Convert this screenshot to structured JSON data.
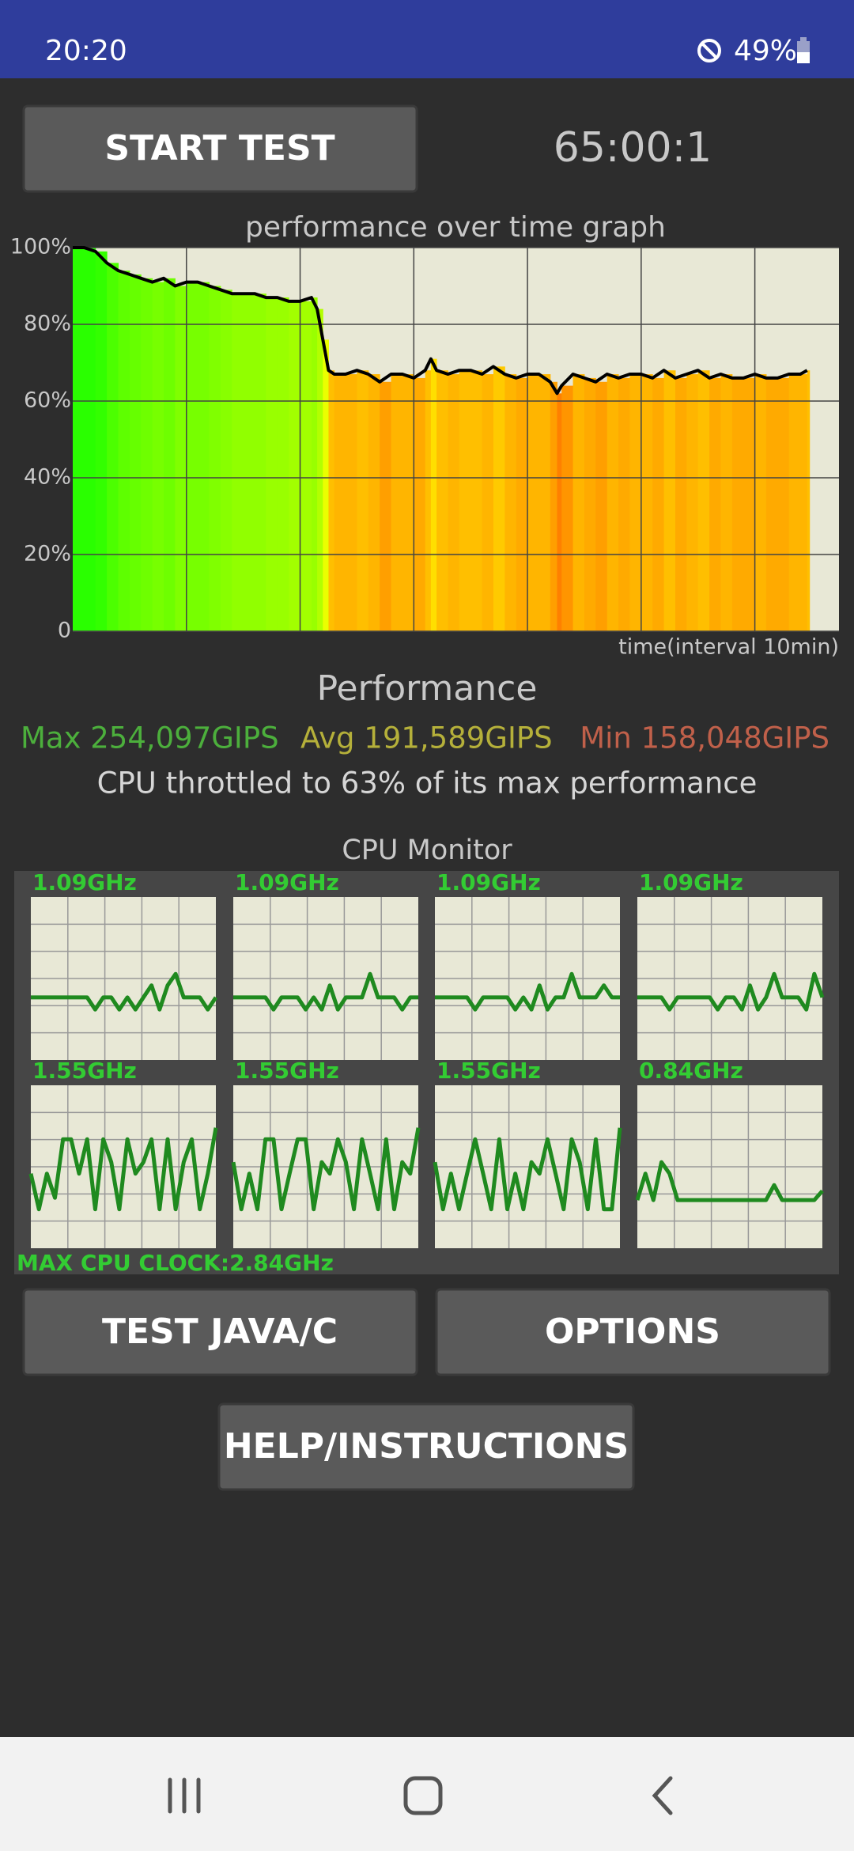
{
  "status_bar": {
    "time": "20:20",
    "battery": "49%"
  },
  "controls": {
    "start_button": "START TEST",
    "timer": "65:00:1"
  },
  "chart_data": {
    "type": "line",
    "title": "performance over time graph",
    "x_label": "time(interval 10min)",
    "color": "#000000",
    "x": [
      0,
      1,
      2,
      3,
      4,
      5,
      6,
      7,
      8,
      9,
      10,
      11,
      12,
      13,
      14,
      15,
      16,
      17,
      18,
      19,
      20,
      21,
      21.5,
      22,
      22.5,
      23,
      24,
      25,
      26,
      27,
      28,
      29,
      30,
      31,
      31.5,
      32,
      33,
      34,
      35,
      36,
      37,
      38,
      39,
      40,
      41,
      42,
      42.6,
      43,
      44,
      45,
      46,
      47,
      48,
      49,
      50,
      51,
      52,
      53,
      54,
      55,
      56,
      57,
      58,
      59,
      60,
      61,
      62,
      63,
      64,
      64.6
    ],
    "values": [
      100,
      100,
      99,
      96,
      94,
      93,
      92,
      91,
      92,
      90,
      91,
      91,
      90,
      89,
      88,
      88,
      88,
      87,
      87,
      86,
      86,
      87,
      84,
      76,
      68,
      67,
      67,
      68,
      67,
      65,
      67,
      67,
      66,
      68,
      71,
      68,
      67,
      68,
      68,
      67,
      69,
      67,
      66,
      67,
      67,
      65,
      62,
      64,
      67,
      66,
      65,
      67,
      66,
      67,
      67,
      66,
      68,
      66,
      67,
      68,
      66,
      67,
      66,
      66,
      67,
      66,
      66,
      67,
      67,
      68
    ],
    "xlim": [
      0,
      67.4
    ],
    "x_grid": [
      10,
      20,
      30,
      40,
      50,
      60
    ],
    "ylim": [
      0,
      100
    ],
    "yticks": [
      {
        "value": 100,
        "label": "100%"
      },
      {
        "value": 80,
        "label": "80%"
      },
      {
        "value": 60,
        "label": "60%"
      },
      {
        "value": 40,
        "label": "40%"
      },
      {
        "value": 20,
        "label": "20%"
      },
      0
    ],
    "grid": true
  },
  "performance": {
    "heading": "Performance",
    "max": "Max 254,097GIPS",
    "avg": "Avg 191,589GIPS",
    "min": "Min 158,048GIPS",
    "summary": "CPU throttled to 63% of its max performance"
  },
  "cpu_monitor": {
    "title": "CPU Monitor",
    "ylim": [
      0,
      2.84
    ],
    "cores": [
      {
        "label": "1.09GHz",
        "history": [
          1.09,
          1.09,
          1.09,
          1.09,
          1.09,
          1.09,
          1.09,
          1.09,
          0.88,
          1.09,
          1.09,
          0.88,
          1.09,
          0.88,
          1.09,
          1.3,
          0.88,
          1.3,
          1.5,
          1.09,
          1.09,
          1.09,
          0.88,
          1.09
        ]
      },
      {
        "label": "1.09GHz",
        "history": [
          1.09,
          1.09,
          1.09,
          1.09,
          1.09,
          0.88,
          1.09,
          1.09,
          1.09,
          0.88,
          1.09,
          0.88,
          1.3,
          0.88,
          1.09,
          1.09,
          1.09,
          1.5,
          1.09,
          1.09,
          1.09,
          0.88,
          1.09,
          1.09
        ]
      },
      {
        "label": "1.09GHz",
        "history": [
          1.09,
          1.09,
          1.09,
          1.09,
          1.09,
          0.88,
          1.09,
          1.09,
          1.09,
          1.09,
          0.88,
          1.09,
          0.88,
          1.3,
          0.88,
          1.09,
          1.09,
          1.5,
          1.09,
          1.09,
          1.09,
          1.3,
          1.09,
          1.09
        ]
      },
      {
        "label": "1.09GHz",
        "history": [
          1.09,
          1.09,
          1.09,
          1.09,
          0.88,
          1.09,
          1.09,
          1.09,
          1.09,
          1.09,
          0.88,
          1.09,
          1.09,
          0.88,
          1.3,
          0.88,
          1.09,
          1.5,
          1.09,
          1.09,
          1.09,
          0.88,
          1.5,
          1.09
        ]
      },
      {
        "label": "1.55GHz",
        "history": [
          1.3,
          0.68,
          1.3,
          0.88,
          1.9,
          1.9,
          1.3,
          1.9,
          0.68,
          1.9,
          1.5,
          0.68,
          1.9,
          1.3,
          1.5,
          1.9,
          0.68,
          1.9,
          0.68,
          1.5,
          1.9,
          0.68,
          1.3,
          2.1
        ]
      },
      {
        "label": "1.55GHz",
        "history": [
          1.5,
          0.68,
          1.3,
          0.68,
          1.9,
          1.9,
          0.68,
          1.3,
          1.9,
          1.9,
          0.68,
          1.5,
          1.3,
          1.9,
          1.5,
          0.68,
          1.9,
          1.3,
          0.68,
          1.9,
          0.68,
          1.5,
          1.3,
          2.1
        ]
      },
      {
        "label": "1.55GHz",
        "history": [
          1.5,
          0.68,
          1.3,
          0.68,
          1.3,
          1.9,
          1.3,
          0.68,
          1.9,
          0.68,
          1.3,
          0.68,
          1.5,
          1.3,
          1.9,
          1.3,
          0.68,
          1.9,
          1.5,
          0.68,
          1.9,
          0.68,
          0.68,
          2.1
        ]
      },
      {
        "label": "0.84GHz",
        "history": [
          0.84,
          1.3,
          0.84,
          1.5,
          1.3,
          0.84,
          0.84,
          0.84,
          0.84,
          0.84,
          0.84,
          0.84,
          0.84,
          0.84,
          0.84,
          0.84,
          0.84,
          1.1,
          0.84,
          0.84,
          0.84,
          0.84,
          0.84,
          1.0
        ]
      }
    ],
    "max_clock": "MAX CPU CLOCK:2.84GHz"
  },
  "buttons": {
    "test_java_c": "TEST JAVA/C",
    "options": "OPTIONS",
    "help": "HELP/INSTRUCTIONS"
  }
}
